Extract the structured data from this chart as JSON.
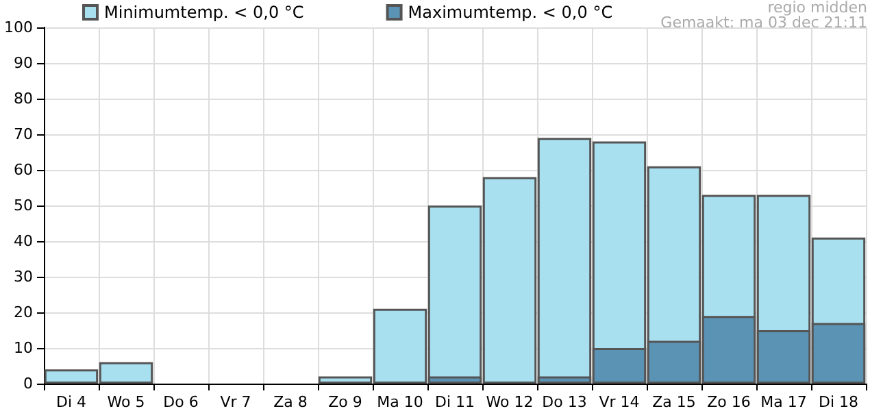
{
  "chart_data": {
    "type": "bar",
    "categories": [
      "Di 4",
      "Wo 5",
      "Do 6",
      "Vr 7",
      "Za 8",
      "Zo 9",
      "Ma 10",
      "Di 11",
      "Wo 12",
      "Do 13",
      "Vr 14",
      "Za 15",
      "Zo 16",
      "Ma 17",
      "Di 18"
    ],
    "series": [
      {
        "name": "Minimumtemp. < 0,0 °C",
        "color": "#a8e0f0",
        "values": [
          4,
          6,
          0,
          0,
          0,
          2,
          21,
          50,
          58,
          69,
          68,
          61,
          53,
          53,
          41
        ]
      },
      {
        "name": "Maximumtemp. < 0,0 °C",
        "color": "#5b93b5",
        "values": [
          0,
          0,
          0,
          0,
          0,
          0,
          0,
          2,
          0,
          2,
          10,
          12,
          19,
          15,
          17
        ]
      }
    ],
    "ylim": [
      0,
      100
    ],
    "yticks": [
      0,
      10,
      20,
      30,
      40,
      50,
      60,
      70,
      80,
      90,
      100
    ],
    "grid": true,
    "legend": "top left",
    "annotations": [
      "regio midden",
      "Gemaakt: ma 03 dec 21:11"
    ]
  }
}
